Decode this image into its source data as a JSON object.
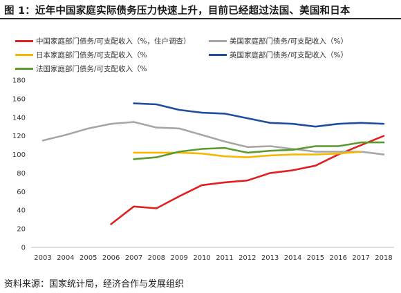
{
  "title": "图 1：近年中国家庭实际债务压力快速上升，目前已经超过法国、美国和日本",
  "source": "资料来源：国家统计局，经济合作与发展组织",
  "colors": {
    "china": "#e02020",
    "usa": "#a6a6a6",
    "japan": "#f5b700",
    "uk": "#1f4e9c",
    "france": "#5a9a2f"
  },
  "chart_data": {
    "type": "line",
    "x": [
      2003,
      2004,
      2005,
      2006,
      2007,
      2008,
      2009,
      2010,
      2011,
      2012,
      2013,
      2014,
      2015,
      2016,
      2017,
      2018
    ],
    "ylim": [
      0,
      180
    ],
    "yticks": [
      0,
      20,
      40,
      60,
      80,
      100,
      120,
      140,
      160,
      180
    ],
    "grid": false,
    "series": [
      {
        "key": "china",
        "name": "中国家庭部门债务/可支配收入（%，住户调查）",
        "values": [
          null,
          null,
          null,
          25,
          44,
          42,
          55,
          67,
          70,
          72,
          80,
          83,
          88,
          100,
          110,
          120
        ]
      },
      {
        "key": "usa",
        "name": "美国家庭部门债务/可支配收入（%）",
        "values": [
          115,
          121,
          128,
          133,
          135,
          129,
          128,
          121,
          114,
          108,
          109,
          106,
          103,
          103,
          103,
          100
        ]
      },
      {
        "key": "japan",
        "name": "日本家庭部门债务/可支配收入（%",
        "values": [
          null,
          null,
          null,
          null,
          102,
          102,
          102,
          101,
          98,
          97,
          99,
          100,
          100,
          101,
          103,
          null
        ]
      },
      {
        "key": "uk",
        "name": "英国家庭部门债务/可支配收入（%）",
        "values": [
          null,
          null,
          null,
          null,
          155,
          154,
          148,
          145,
          144,
          139,
          134,
          133,
          130,
          133,
          134,
          133
        ]
      },
      {
        "key": "france",
        "name": "法国家庭部门债务/可支配收入（%",
        "values": [
          null,
          null,
          null,
          null,
          95,
          97,
          103,
          106,
          107,
          102,
          104,
          105,
          109,
          109,
          113,
          113
        ]
      }
    ]
  }
}
